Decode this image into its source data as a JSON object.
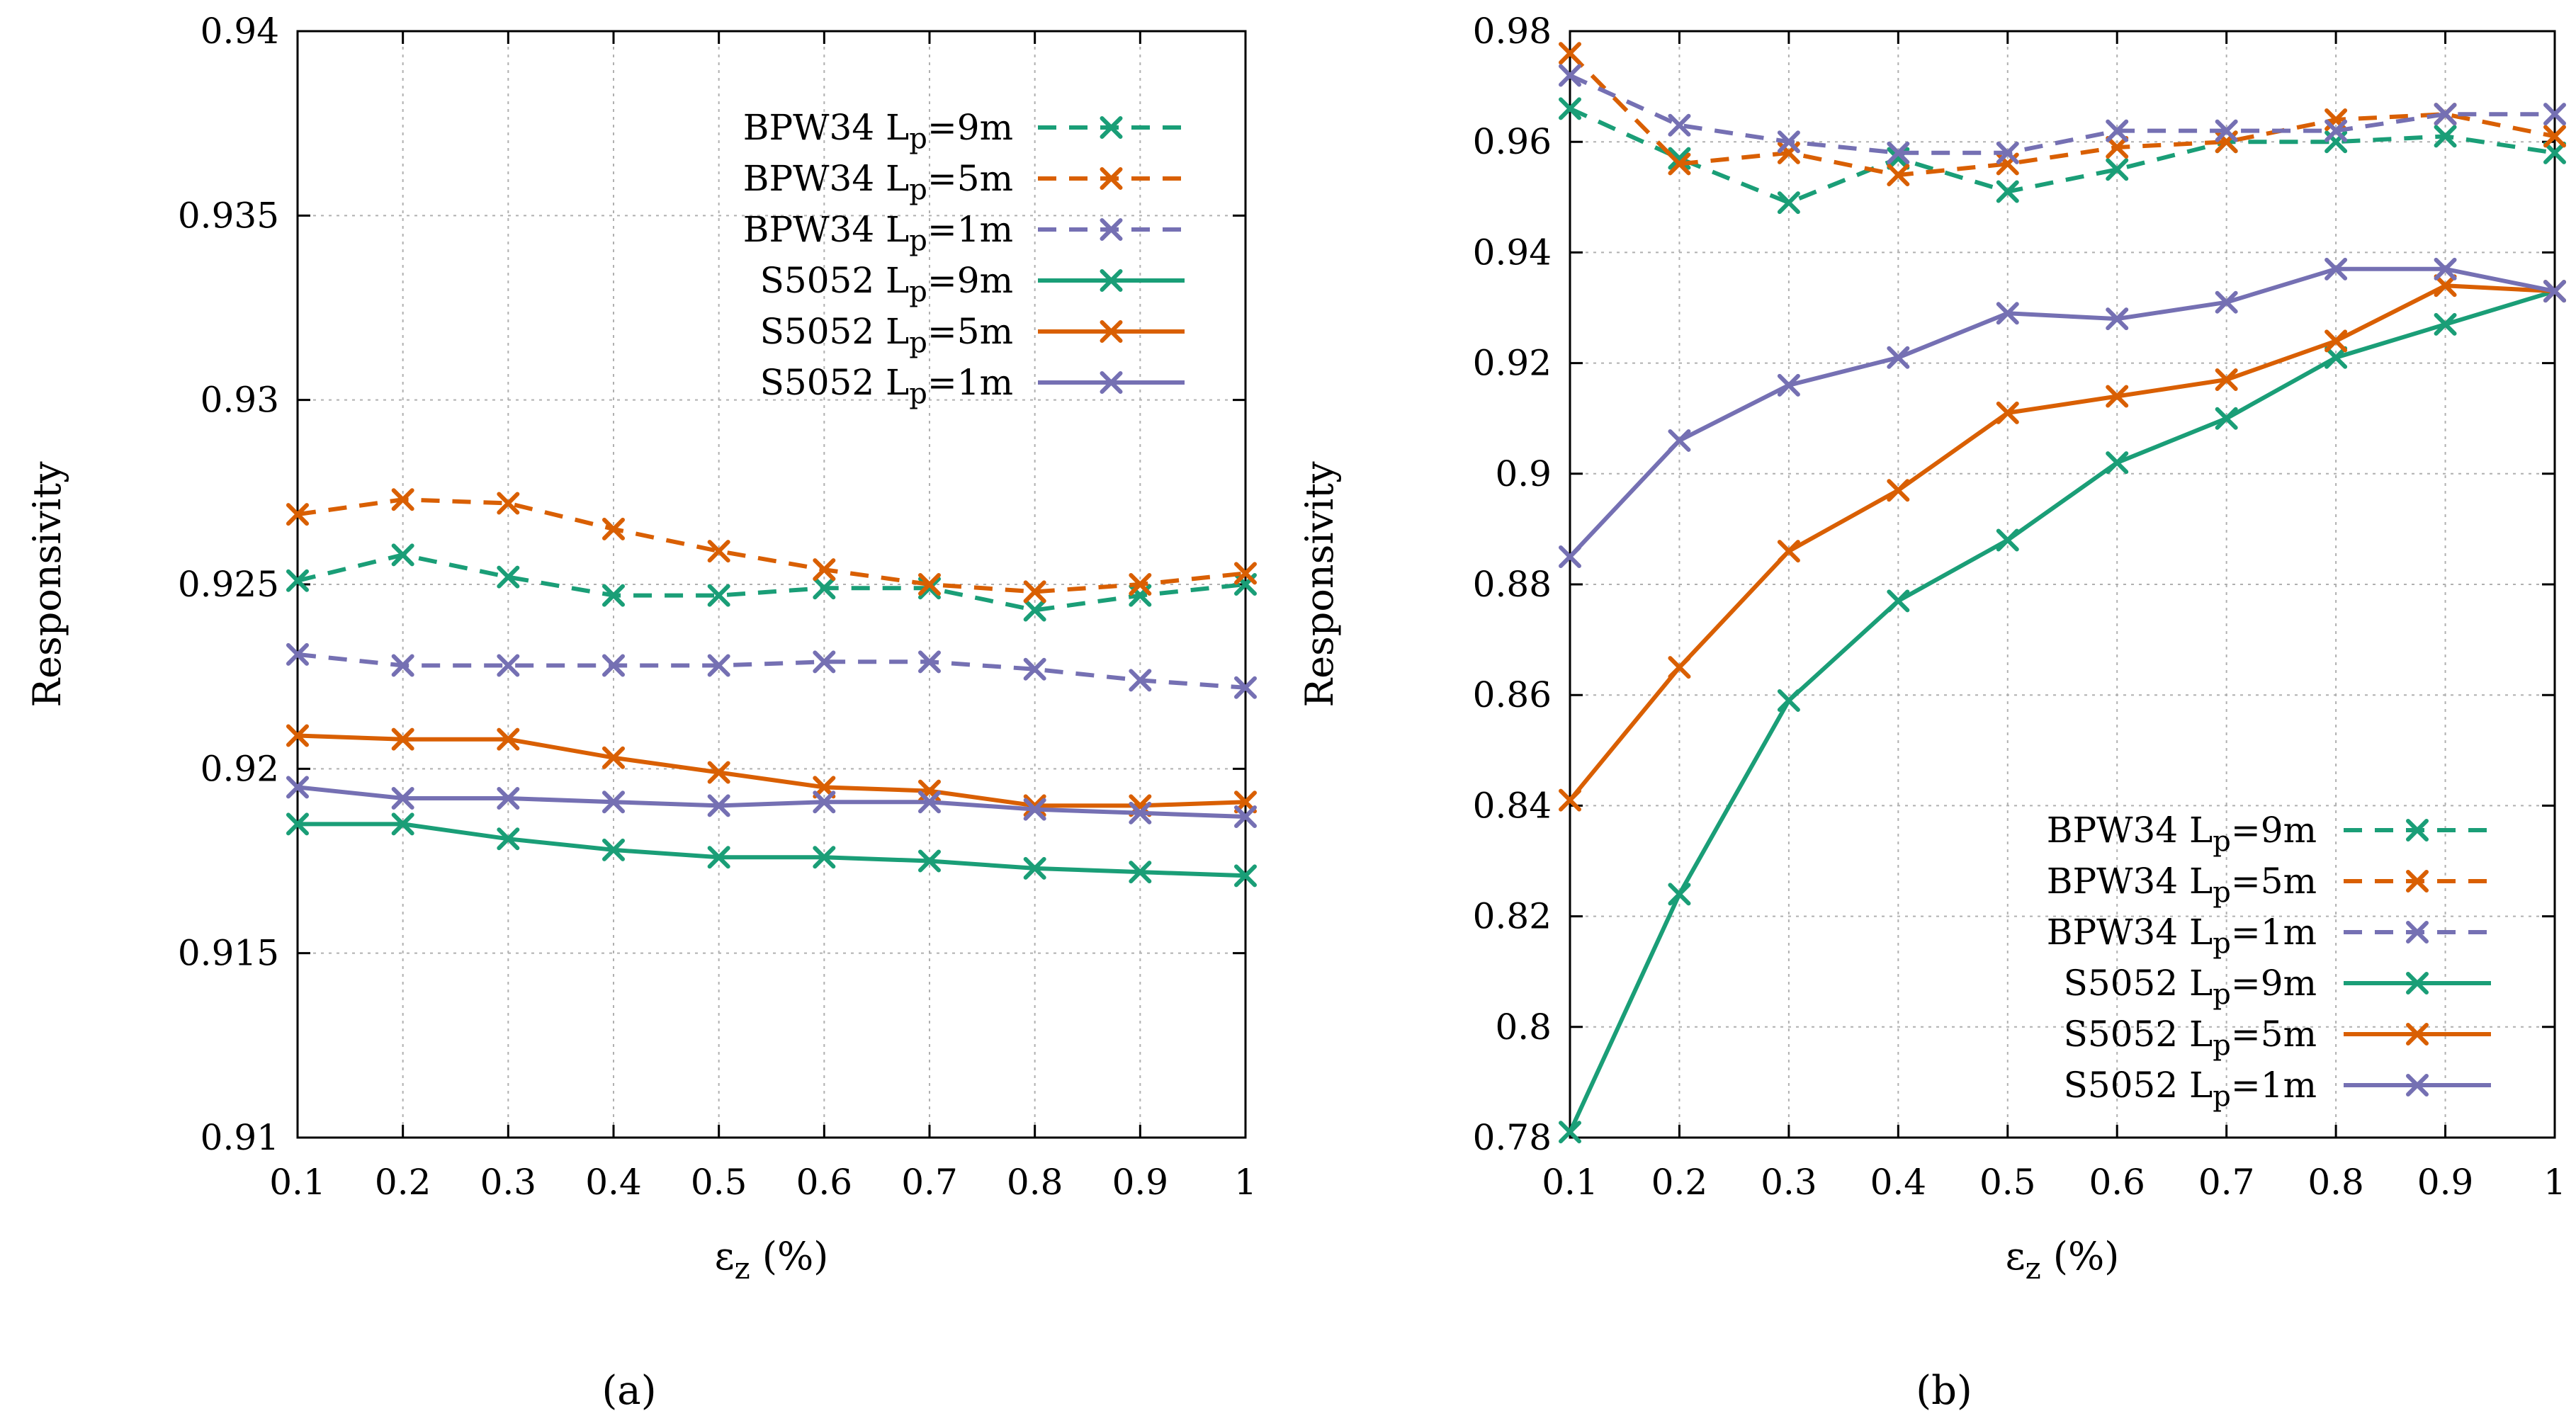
{
  "figure": {
    "caption_a": "(a)",
    "caption_b": "(b)"
  },
  "chart_data": [
    {
      "type": "line",
      "panel": "a",
      "xlabel": "ε_z (%)",
      "ylabel": "Responsivity",
      "xlim": [
        0.1,
        1.0
      ],
      "ylim": [
        0.91,
        0.94
      ],
      "xticks": [
        "0.1",
        "0.2",
        "0.3",
        "0.4",
        "0.5",
        "0.6",
        "0.7",
        "0.8",
        "0.9",
        "1"
      ],
      "yticks": [
        "0.91",
        "0.915",
        "0.92",
        "0.925",
        "0.93",
        "0.935",
        "0.94"
      ],
      "grid": true,
      "legend_position": "top-right",
      "x": [
        0.1,
        0.2,
        0.3,
        0.4,
        0.5,
        0.6,
        0.7,
        0.8,
        0.9,
        1.0
      ],
      "series": [
        {
          "name": "BPW34 Lp=9m",
          "detector": "BPW34",
          "lp": "9m",
          "style": "dashed",
          "color": "#1a9e77",
          "values": [
            0.9251,
            0.9258,
            0.9252,
            0.9247,
            0.9247,
            0.9249,
            0.9249,
            0.9243,
            0.9247,
            0.925
          ]
        },
        {
          "name": "BPW34 Lp=5m",
          "detector": "BPW34",
          "lp": "5m",
          "style": "dashed",
          "color": "#d95f02",
          "values": [
            0.9269,
            0.9273,
            0.9272,
            0.9265,
            0.9259,
            0.9254,
            0.925,
            0.9248,
            0.925,
            0.9253
          ]
        },
        {
          "name": "BPW34 Lp=1m",
          "detector": "BPW34",
          "lp": "1m",
          "style": "dashed",
          "color": "#7570b3",
          "values": [
            0.9231,
            0.9228,
            0.9228,
            0.9228,
            0.9228,
            0.9229,
            0.9229,
            0.9227,
            0.9224,
            0.9222
          ]
        },
        {
          "name": "S5052 Lp=9m",
          "detector": "S5052",
          "lp": "9m",
          "style": "solid",
          "color": "#1a9e77",
          "values": [
            0.9185,
            0.9185,
            0.9181,
            0.9178,
            0.9176,
            0.9176,
            0.9175,
            0.9173,
            0.9172,
            0.9171
          ]
        },
        {
          "name": "S5052 Lp=5m",
          "detector": "S5052",
          "lp": "5m",
          "style": "solid",
          "color": "#d95f02",
          "values": [
            0.9209,
            0.9208,
            0.9208,
            0.9203,
            0.9199,
            0.9195,
            0.9194,
            0.919,
            0.919,
            0.9191
          ]
        },
        {
          "name": "S5052 Lp=1m",
          "detector": "S5052",
          "lp": "1m",
          "style": "solid",
          "color": "#7570b3",
          "values": [
            0.9195,
            0.9192,
            0.9192,
            0.9191,
            0.919,
            0.9191,
            0.9191,
            0.9189,
            0.9188,
            0.9187
          ]
        }
      ]
    },
    {
      "type": "line",
      "panel": "b",
      "xlabel": "ε_z (%)",
      "ylabel": "Responsivity",
      "xlim": [
        0.1,
        1.0
      ],
      "ylim": [
        0.78,
        0.98
      ],
      "xticks": [
        "0.1",
        "0.2",
        "0.3",
        "0.4",
        "0.5",
        "0.6",
        "0.7",
        "0.8",
        "0.9",
        "1"
      ],
      "yticks": [
        "0.78",
        "0.8",
        "0.82",
        "0.84",
        "0.86",
        "0.88",
        "0.9",
        "0.92",
        "0.94",
        "0.96",
        "0.98"
      ],
      "grid": true,
      "legend_position": "bottom-right",
      "x": [
        0.1,
        0.2,
        0.3,
        0.4,
        0.5,
        0.6,
        0.7,
        0.8,
        0.9,
        1.0
      ],
      "series": [
        {
          "name": "BPW34 Lp=9m",
          "detector": "BPW34",
          "lp": "9m",
          "style": "dashed",
          "color": "#1a9e77",
          "values": [
            0.966,
            0.957,
            0.949,
            0.957,
            0.951,
            0.955,
            0.96,
            0.96,
            0.961,
            0.958
          ]
        },
        {
          "name": "BPW34 Lp=5m",
          "detector": "BPW34",
          "lp": "5m",
          "style": "dashed",
          "color": "#d95f02",
          "values": [
            0.976,
            0.956,
            0.958,
            0.954,
            0.956,
            0.959,
            0.96,
            0.964,
            0.965,
            0.961
          ]
        },
        {
          "name": "BPW34 Lp=1m",
          "detector": "BPW34",
          "lp": "1m",
          "style": "dashed",
          "color": "#7570b3",
          "values": [
            0.972,
            0.963,
            0.96,
            0.958,
            0.958,
            0.962,
            0.962,
            0.962,
            0.965,
            0.965
          ]
        },
        {
          "name": "S5052 Lp=9m",
          "detector": "S5052",
          "lp": "9m",
          "style": "solid",
          "color": "#1a9e77",
          "values": [
            0.781,
            0.824,
            0.859,
            0.877,
            0.888,
            0.902,
            0.91,
            0.921,
            0.927,
            0.933
          ]
        },
        {
          "name": "S5052 Lp=5m",
          "detector": "S5052",
          "lp": "5m",
          "style": "solid",
          "color": "#d95f02",
          "values": [
            0.841,
            0.865,
            0.886,
            0.897,
            0.911,
            0.914,
            0.917,
            0.924,
            0.934,
            0.933
          ]
        },
        {
          "name": "S5052 Lp=1m",
          "detector": "S5052",
          "lp": "1m",
          "style": "solid",
          "color": "#7570b3",
          "values": [
            0.885,
            0.906,
            0.916,
            0.921,
            0.929,
            0.928,
            0.931,
            0.937,
            0.937,
            0.933
          ]
        }
      ]
    }
  ]
}
